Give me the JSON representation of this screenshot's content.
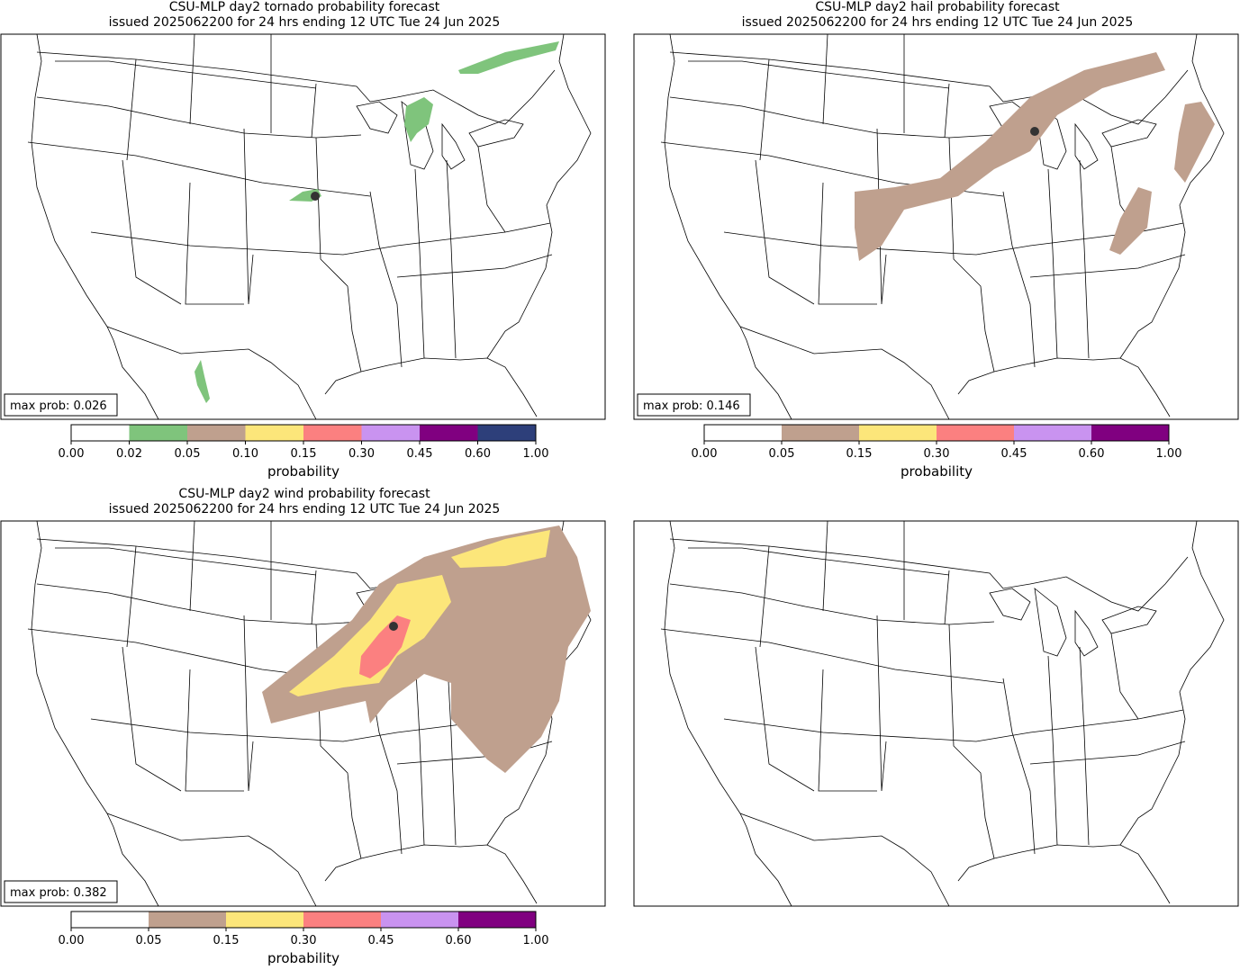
{
  "panels": [
    {
      "title": [
        "CSU-MLP day2 tornado probability forecast",
        "issued 2025062200 for 24 hrs ending 12 UTC Tue 24 Jun 2025"
      ],
      "max_prob": "max prob: 0.026",
      "colorbar": {
        "label": "probability",
        "ticks": [
          {
            "value": 0,
            "label": "0.00"
          },
          {
            "value": 0.02,
            "label": "0.02"
          },
          {
            "value": 0.05,
            "label": "0.05"
          },
          {
            "value": 0.1,
            "label": "0.10"
          },
          {
            "value": 0.15,
            "label": "0.15"
          },
          {
            "value": 0.3,
            "label": "0.30"
          },
          {
            "value": 0.45,
            "label": "0.45"
          },
          {
            "value": 0.6,
            "label": "0.60"
          },
          {
            "value": 1,
            "label": "1.00"
          }
        ],
        "colors": [
          "#ffffff",
          "#7fc47c",
          "#bfa08e",
          "#fce67a",
          "#fb8080",
          "#c993f0",
          "#800080",
          "#2d3f7a"
        ]
      }
    },
    {
      "title": [
        "CSU-MLP day2 hail probability forecast",
        "issued 2025062200 for 24 hrs ending 12 UTC Tue 24 Jun 2025"
      ],
      "max_prob": "max prob: 0.146",
      "colorbar": {
        "label": "probability",
        "ticks": [
          {
            "value": 0,
            "label": "0.00"
          },
          {
            "value": 0.05,
            "label": "0.05"
          },
          {
            "value": 0.15,
            "label": "0.15"
          },
          {
            "value": 0.3,
            "label": "0.30"
          },
          {
            "value": 0.45,
            "label": "0.45"
          },
          {
            "value": 0.6,
            "label": "0.60"
          },
          {
            "value": 1,
            "label": "1.00"
          }
        ],
        "colors": [
          "#ffffff",
          "#bfa08e",
          "#fce67a",
          "#fb8080",
          "#c993f0",
          "#800080"
        ]
      }
    },
    {
      "title": [
        "CSU-MLP day2 wind probability forecast",
        "issued 2025062200 for 24 hrs ending 12 UTC Tue 24 Jun 2025"
      ],
      "max_prob": "max prob: 0.382",
      "colorbar": {
        "label": "probability",
        "ticks": [
          {
            "value": 0,
            "label": "0.00"
          },
          {
            "value": 0.05,
            "label": "0.05"
          },
          {
            "value": 0.15,
            "label": "0.15"
          },
          {
            "value": 0.3,
            "label": "0.30"
          },
          {
            "value": 0.45,
            "label": "0.45"
          },
          {
            "value": 0.6,
            "label": "0.60"
          },
          {
            "value": 1,
            "label": "1.00"
          }
        ],
        "colors": [
          "#ffffff",
          "#bfa08e",
          "#fce67a",
          "#fb8080",
          "#c993f0",
          "#800080"
        ]
      }
    }
  ]
}
